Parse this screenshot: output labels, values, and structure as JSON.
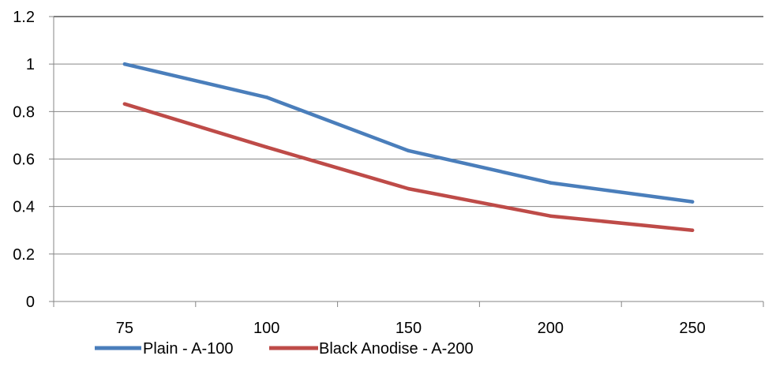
{
  "chart_data": {
    "type": "line",
    "title": "",
    "xlabel": "",
    "ylabel": "",
    "categories": [
      "75",
      "100",
      "150",
      "200",
      "250"
    ],
    "ylim": [
      0,
      1.2
    ],
    "yticks": [
      "0",
      "0.2",
      "0.4",
      "0.6",
      "0.8",
      "1",
      "1.2"
    ],
    "grid": true,
    "legend_position": "bottom-left",
    "series": [
      {
        "name": "Plain - A-100",
        "color": "#4a7ebb",
        "values": [
          1.0,
          0.86,
          0.635,
          0.5,
          0.42
        ]
      },
      {
        "name": "Black Anodise - A-200",
        "color": "#be4b48",
        "values": [
          0.832,
          0.65,
          0.475,
          0.36,
          0.3
        ]
      }
    ]
  }
}
